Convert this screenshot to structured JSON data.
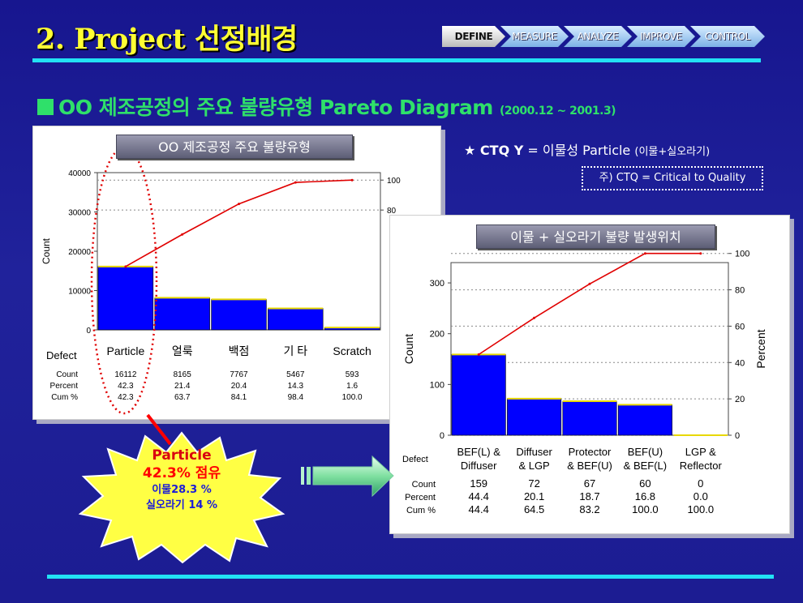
{
  "slide": {
    "title": "2. Project 선정배경",
    "subtitle": "OO 제조공정의 주요 불량유형 Pareto Diagram",
    "date_range": "(2000.12 ~ 2001.3)"
  },
  "phases": [
    "DEFINE",
    "MEASURE",
    "ANALYZE",
    "IMPROVE",
    "CONTROL"
  ],
  "ctq": {
    "label": "★ CTQ Y",
    "value": "=  이물성 Particle",
    "detail": "(이물+실오라기)",
    "note": "주) CTQ = Critical to Quality"
  },
  "callout": {
    "line1": "Particle",
    "line2": "42.3% 점유",
    "line3": "이물28.3 %",
    "line4": "실오라기 14 %"
  },
  "chart_data": [
    {
      "type": "bar",
      "title": "OO 제조공정 주요 불량유형",
      "ylabel": "Count",
      "ylim": [
        0,
        40000
      ],
      "y_ticks": [
        0,
        10000,
        20000,
        30000,
        40000
      ],
      "y2_ticks": [
        80,
        100
      ],
      "categories": [
        "Particle",
        "얼룩",
        "백점",
        "기 타",
        "Scratch"
      ],
      "row_labels": {
        "defect": "Defect",
        "count": "Count",
        "percent": "Percent",
        "cum": "Cum %"
      },
      "values": [
        16112,
        8165,
        7767,
        5467,
        593
      ],
      "percent": [
        "42.3",
        "21.4",
        "20.4",
        "14.3",
        "1.6"
      ],
      "cum_percent": [
        "42.3",
        "63.7",
        "84.1",
        "98.4",
        "100.0"
      ],
      "bar_color": "#0000ff",
      "line_color": "#e00000"
    },
    {
      "type": "bar",
      "title": "이물 + 실오라기 불량 발생위치",
      "ylabel": "Count",
      "y2label": "Percent",
      "ylim": [
        0,
        340
      ],
      "y_ticks": [
        0,
        100,
        200,
        300
      ],
      "y2_ticks": [
        0,
        20,
        40,
        60,
        80,
        100
      ],
      "categories": [
        [
          "BEF(L) &",
          "Diffuser"
        ],
        [
          "Diffuser",
          "& LGP"
        ],
        [
          "Protector",
          "& BEF(U)"
        ],
        [
          "BEF(U)",
          "& BEF(L)"
        ],
        [
          "LGP &",
          "Reflector"
        ]
      ],
      "row_labels": {
        "defect": "Defect",
        "count": "Count",
        "percent": "Percent",
        "cum": "Cum %"
      },
      "values": [
        159,
        72,
        67,
        60,
        0
      ],
      "percent": [
        "44.4",
        "20.1",
        "18.7",
        "16.8",
        "0.0"
      ],
      "cum_percent": [
        "44.4",
        "64.5",
        "83.2",
        "100.0",
        "100.0"
      ],
      "bar_color": "#0000ff",
      "line_color": "#e00000"
    }
  ]
}
